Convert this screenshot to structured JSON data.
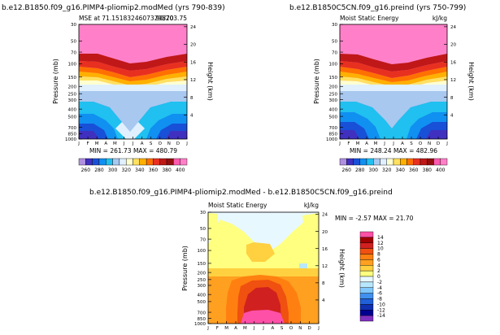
{
  "chart_data": [
    {
      "type": "heatmap",
      "title": "b.e12.B1850.f09_g16.PIMP4-pliomip2.modMed (yrs 790-839)",
      "subtitle_left": "MSE at 71.1518324607329870",
      "subtitle_right": "90/203.75",
      "ylabel": "Pressure (mb)",
      "ylabel_right": "Height (km)",
      "xticks": [
        "J",
        "F",
        "M",
        "A",
        "M",
        "J",
        "J",
        "A",
        "S",
        "O",
        "N",
        "D",
        "J"
      ],
      "yticks": [
        "30",
        "50",
        "70",
        "100",
        "150",
        "200",
        "250",
        "300",
        "400",
        "500",
        "700",
        "850",
        "1000"
      ],
      "yticks_right": [
        "24",
        "20",
        "16",
        "12",
        "8",
        "4"
      ],
      "stats": "MIN = 261.73  MAX = 480.79",
      "colorbar_labels": [
        "260",
        "280",
        "300",
        "320",
        "340",
        "360",
        "380",
        "400"
      ]
    },
    {
      "type": "heatmap",
      "title": "b.e12.B1850C5CN.f09_g16.preind (yrs 750-799)",
      "subtitle_left": "Moist Static Energy",
      "subtitle_right": "kJ/kg",
      "ylabel": "Pressure (mb)",
      "ylabel_right": "Height (km)",
      "xticks": [
        "J",
        "F",
        "M",
        "A",
        "M",
        "J",
        "J",
        "A",
        "S",
        "O",
        "N",
        "D",
        "J"
      ],
      "yticks": [
        "30",
        "50",
        "70",
        "100",
        "150",
        "200",
        "250",
        "300",
        "400",
        "500",
        "700",
        "850",
        "1000"
      ],
      "yticks_right": [
        "24",
        "20",
        "16",
        "12",
        "8",
        "4"
      ],
      "stats": "MIN = 248.24  MAX = 482.96",
      "colorbar_labels": [
        "260",
        "280",
        "300",
        "320",
        "340",
        "360",
        "380",
        "400"
      ]
    },
    {
      "type": "heatmap",
      "title": "b.e12.B1850.f09_g16.PIMP4-pliomip2.modMed - b.e12.B1850C5CN.f09_g16.preind",
      "subtitle_left": "Moist Static Energy",
      "subtitle_right": "kJ/kg",
      "ylabel": "Pressure (mb)",
      "ylabel_right": "Height (km)",
      "xticks": [
        "J",
        "F",
        "M",
        "A",
        "M",
        "J",
        "J",
        "A",
        "S",
        "O",
        "N",
        "D",
        "J"
      ],
      "yticks": [
        "30",
        "50",
        "70",
        "100",
        "150",
        "200",
        "250",
        "300",
        "400",
        "500",
        "700",
        "850",
        "1000"
      ],
      "yticks_right": [
        "24",
        "20",
        "16",
        "12",
        "8",
        "4"
      ],
      "stats": "MIN =  -2.57  MAX =  21.70",
      "colorbar_labels": [
        "14",
        "12",
        "10",
        "8",
        "6",
        "4",
        "2",
        "0",
        "-2",
        "-4",
        "-6",
        "-8",
        "-10",
        "-12",
        "-14"
      ]
    }
  ],
  "colors": {
    "abs_scale": [
      "#b090e0",
      "#4030c0",
      "#1850d8",
      "#1090f0",
      "#20c0f0",
      "#a8c8f0",
      "#e0f0ff",
      "#ffffd0",
      "#ffe060",
      "#ffb000",
      "#ff7000",
      "#e83020",
      "#c01818",
      "#901010",
      "#ff5ab0",
      "#ff80c8"
    ],
    "diff_scale": [
      "#ff50a8",
      "#a00000",
      "#d02020",
      "#f05010",
      "#ff8010",
      "#ffa020",
      "#ffd040",
      "#ffff80",
      "#e8f8ff",
      "#b8e8ff",
      "#80c8ff",
      "#4090f0",
      "#2060d8",
      "#1030b0",
      "#000090",
      "#8030c0"
    ]
  }
}
